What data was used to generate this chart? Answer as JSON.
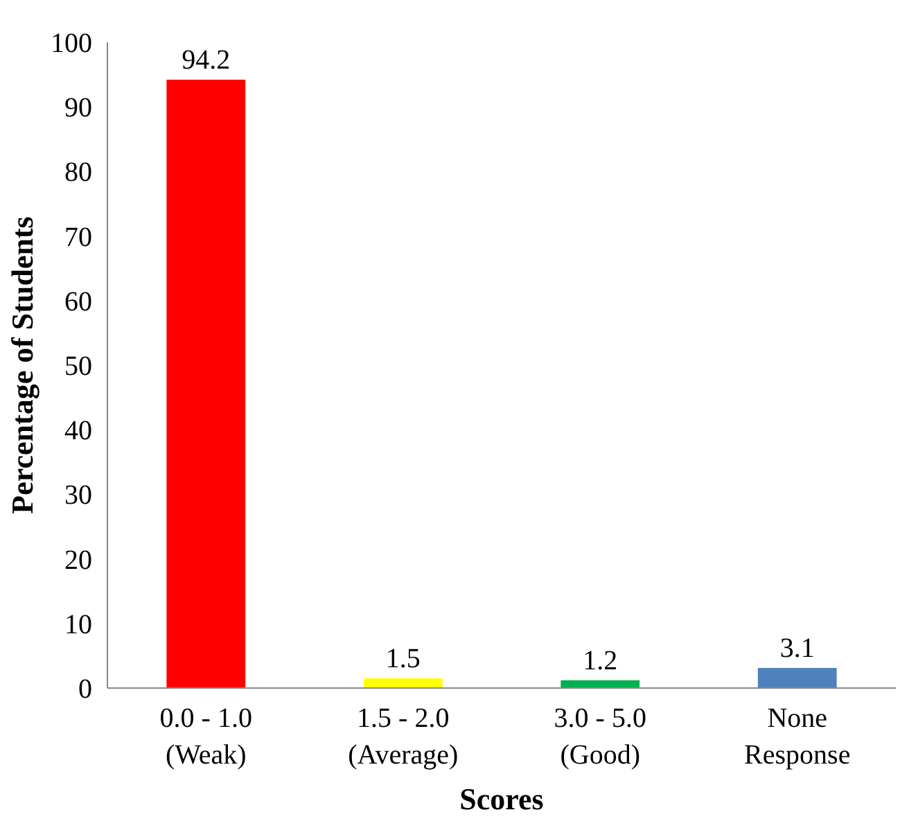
{
  "chart_data": {
    "type": "bar",
    "xlabel": "Scores",
    "ylabel": "Percentage of Students",
    "categories": [
      "0.0 - 1.0\n(Weak)",
      "1.5 - 2.0\n(Average)",
      "3.0 - 5.0\n(Good)",
      "None\nResponse"
    ],
    "values": [
      94.2,
      1.5,
      1.2,
      3.1
    ],
    "colors": [
      "#ff0000",
      "#ffff00",
      "#00b050",
      "#4f81bd"
    ],
    "ylim": [
      0,
      100
    ],
    "yticks": [
      0,
      10,
      20,
      30,
      40,
      50,
      60,
      70,
      80,
      90,
      100
    ],
    "data_labels": true,
    "grid": false
  }
}
